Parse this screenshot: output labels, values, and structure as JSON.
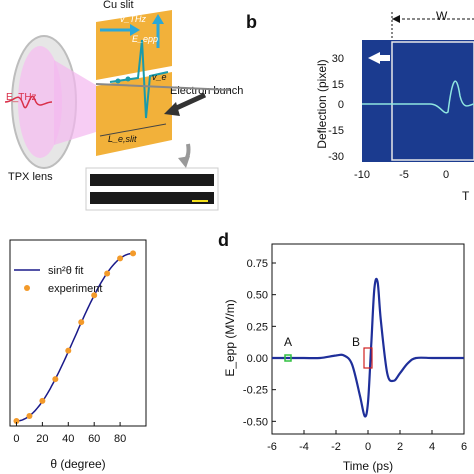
{
  "figure": {
    "panel_letters": {
      "b": "b",
      "d": "d"
    },
    "panel_a": {
      "labels": {
        "cu_slit": "Cu slit",
        "v_thz": "v_THz",
        "e_epp": "E_epp",
        "v_e": "v_e",
        "electron_bunch": "Electron bunch",
        "l_slit": "L_e,slit",
        "e_thz": "E_THz",
        "tpx_lens": "TPX lens"
      }
    },
    "panel_b": {
      "ylabel": "Deflection (pixel)",
      "xlabel_partial": "T",
      "window_label": "W",
      "xticks": [
        "-10",
        "-5",
        "0"
      ],
      "yticks": [
        "30",
        "15",
        "0",
        "-15",
        "-30"
      ]
    },
    "panel_c": {
      "xlabel": "θ (degree)",
      "xticks": [
        "0",
        "20",
        "40",
        "60",
        "80"
      ],
      "legend": {
        "fit": "sin²θ fit",
        "experiment": "experiment"
      }
    },
    "panel_d": {
      "ylabel": "E_epp (MV/m)",
      "xlabel": "Time (ps)",
      "xticks": [
        "-6",
        "-4",
        "-2",
        "0",
        "2",
        "4",
        "6"
      ],
      "yticks": [
        "0.75",
        "0.50",
        "0.25",
        "0.00",
        "-0.25",
        "-0.50"
      ],
      "marker_a": "A",
      "marker_b": "B"
    },
    "colors": {
      "gold": "#f2b13a",
      "fit_line": "#1a1a8a",
      "points": "#f39a2a",
      "trace": "#1f2f9a",
      "marker_a": "#30c040",
      "marker_b": "#d02020"
    }
  },
  "chart_data": [
    {
      "type": "scatter",
      "panel": "c",
      "xlabel": "θ (degree)",
      "ylabel": "",
      "xlim": [
        -5,
        100
      ],
      "series": [
        {
          "name": "experiment",
          "x": [
            0,
            10,
            20,
            30,
            40,
            50,
            60,
            70,
            80,
            90
          ],
          "y": [
            0.0,
            0.03,
            0.12,
            0.25,
            0.42,
            0.59,
            0.75,
            0.88,
            0.97,
            1.0
          ]
        },
        {
          "name": "sin²θ fit",
          "function": "sin^2(theta)"
        }
      ]
    },
    {
      "type": "line",
      "panel": "d",
      "xlabel": "Time (ps)",
      "ylabel": "E_epp (MV/m)",
      "xlim": [
        -6,
        6
      ],
      "ylim": [
        -0.6,
        0.9
      ],
      "series": [
        {
          "name": "E_epp",
          "x": [
            -6,
            -5,
            -4,
            -3,
            -2,
            -1.5,
            -1,
            -0.5,
            -0.2,
            0,
            0.2,
            0.4,
            0.6,
            0.8,
            1.2,
            1.6,
            2,
            2.5,
            3,
            4,
            5,
            6
          ],
          "y": [
            0.0,
            0.0,
            0.0,
            0.0,
            0.02,
            0.02,
            -0.05,
            -0.3,
            -0.46,
            -0.35,
            0.1,
            0.55,
            0.6,
            0.3,
            -0.12,
            -0.18,
            -0.12,
            -0.04,
            0.0,
            0.0,
            0.0,
            0.0
          ]
        }
      ]
    }
  ]
}
